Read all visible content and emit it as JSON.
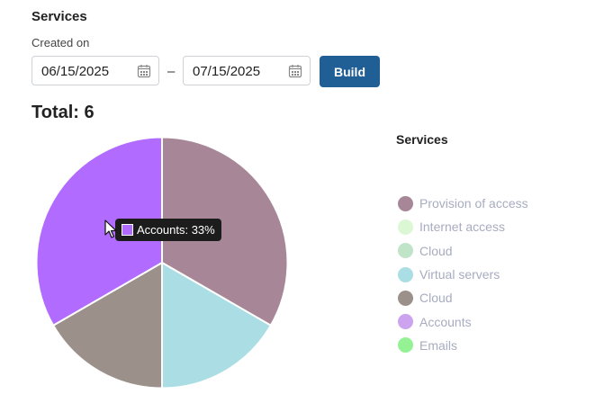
{
  "header": {
    "title": "Services",
    "created_label": "Created on",
    "date_from": "06/15/2025",
    "date_to": "07/15/2025",
    "separator": "–",
    "build_label": "Build",
    "total_label": "Total: 6"
  },
  "calendar_icon": "calendar-icon",
  "tooltip": {
    "text": "Accounts: 33%",
    "color": "#b26bff"
  },
  "chart_data": {
    "type": "pie",
    "legend_title": "Services",
    "legend_position": "right",
    "total": 6,
    "slices": [
      {
        "label": "Provision of access",
        "value": 2,
        "color": "#a78797"
      },
      {
        "label": "Internet access",
        "value": 0,
        "color": "#dcf7d4"
      },
      {
        "label": "Cloud",
        "value": 0,
        "color": "#c0e4c8"
      },
      {
        "label": "Virtual servers",
        "value": 1,
        "color": "#abdee4"
      },
      {
        "label": "Cloud",
        "value": 1,
        "color": "#9c918a"
      },
      {
        "label": "Accounts",
        "value": 2,
        "color": "#b26bff"
      },
      {
        "label": "Emails",
        "value": 0,
        "color": "#94f294"
      }
    ],
    "legend_colors": [
      "#a78797",
      "#dcf7d4",
      "#c0e4c8",
      "#abdee4",
      "#9c918a",
      "#cca3ee",
      "#94f294"
    ]
  }
}
